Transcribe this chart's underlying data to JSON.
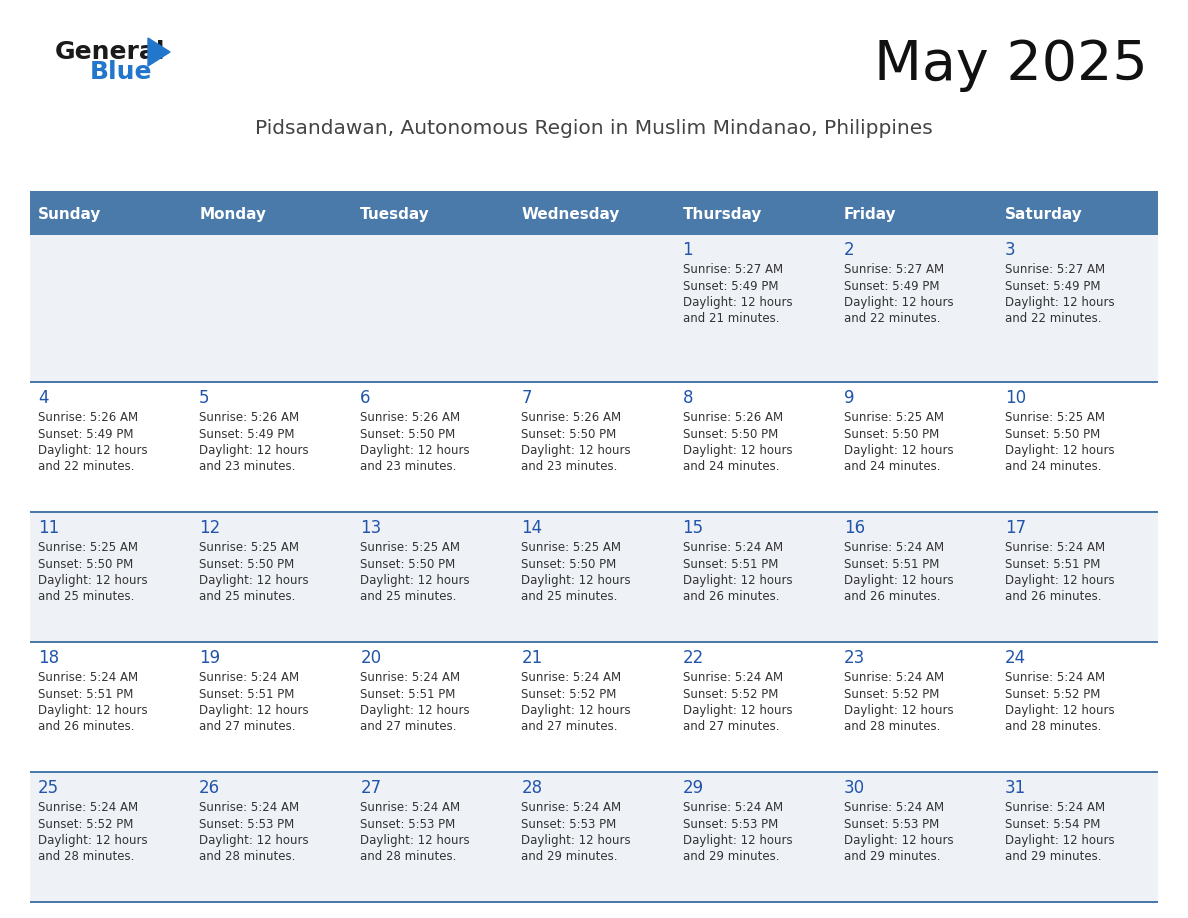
{
  "title": "May 2025",
  "subtitle": "Pidsandawan, Autonomous Region in Muslim Mindanao, Philippines",
  "days_of_week": [
    "Sunday",
    "Monday",
    "Tuesday",
    "Wednesday",
    "Thursday",
    "Friday",
    "Saturday"
  ],
  "header_bg": "#4a7aaa",
  "header_text": "#ffffff",
  "row_bg_odd": "#eef2f7",
  "row_bg_even": "#ffffff",
  "day_number_color": "#2255aa",
  "cell_text_color": "#333333",
  "border_color": "#4a7aaa",
  "title_color": "#111111",
  "subtitle_color": "#444444",
  "logo_general_color": "#1a1a1a",
  "logo_blue_color": "#2277cc",
  "calendar_data": [
    [
      null,
      null,
      null,
      null,
      {
        "day": 1,
        "sunrise": "5:27 AM",
        "sunset": "5:49 PM",
        "daylight": "12 hours and 21 minutes."
      },
      {
        "day": 2,
        "sunrise": "5:27 AM",
        "sunset": "5:49 PM",
        "daylight": "12 hours and 22 minutes."
      },
      {
        "day": 3,
        "sunrise": "5:27 AM",
        "sunset": "5:49 PM",
        "daylight": "12 hours and 22 minutes."
      }
    ],
    [
      {
        "day": 4,
        "sunrise": "5:26 AM",
        "sunset": "5:49 PM",
        "daylight": "12 hours and 22 minutes."
      },
      {
        "day": 5,
        "sunrise": "5:26 AM",
        "sunset": "5:49 PM",
        "daylight": "12 hours and 23 minutes."
      },
      {
        "day": 6,
        "sunrise": "5:26 AM",
        "sunset": "5:50 PM",
        "daylight": "12 hours and 23 minutes."
      },
      {
        "day": 7,
        "sunrise": "5:26 AM",
        "sunset": "5:50 PM",
        "daylight": "12 hours and 23 minutes."
      },
      {
        "day": 8,
        "sunrise": "5:26 AM",
        "sunset": "5:50 PM",
        "daylight": "12 hours and 24 minutes."
      },
      {
        "day": 9,
        "sunrise": "5:25 AM",
        "sunset": "5:50 PM",
        "daylight": "12 hours and 24 minutes."
      },
      {
        "day": 10,
        "sunrise": "5:25 AM",
        "sunset": "5:50 PM",
        "daylight": "12 hours and 24 minutes."
      }
    ],
    [
      {
        "day": 11,
        "sunrise": "5:25 AM",
        "sunset": "5:50 PM",
        "daylight": "12 hours and 25 minutes."
      },
      {
        "day": 12,
        "sunrise": "5:25 AM",
        "sunset": "5:50 PM",
        "daylight": "12 hours and 25 minutes."
      },
      {
        "day": 13,
        "sunrise": "5:25 AM",
        "sunset": "5:50 PM",
        "daylight": "12 hours and 25 minutes."
      },
      {
        "day": 14,
        "sunrise": "5:25 AM",
        "sunset": "5:50 PM",
        "daylight": "12 hours and 25 minutes."
      },
      {
        "day": 15,
        "sunrise": "5:24 AM",
        "sunset": "5:51 PM",
        "daylight": "12 hours and 26 minutes."
      },
      {
        "day": 16,
        "sunrise": "5:24 AM",
        "sunset": "5:51 PM",
        "daylight": "12 hours and 26 minutes."
      },
      {
        "day": 17,
        "sunrise": "5:24 AM",
        "sunset": "5:51 PM",
        "daylight": "12 hours and 26 minutes."
      }
    ],
    [
      {
        "day": 18,
        "sunrise": "5:24 AM",
        "sunset": "5:51 PM",
        "daylight": "12 hours and 26 minutes."
      },
      {
        "day": 19,
        "sunrise": "5:24 AM",
        "sunset": "5:51 PM",
        "daylight": "12 hours and 27 minutes."
      },
      {
        "day": 20,
        "sunrise": "5:24 AM",
        "sunset": "5:51 PM",
        "daylight": "12 hours and 27 minutes."
      },
      {
        "day": 21,
        "sunrise": "5:24 AM",
        "sunset": "5:52 PM",
        "daylight": "12 hours and 27 minutes."
      },
      {
        "day": 22,
        "sunrise": "5:24 AM",
        "sunset": "5:52 PM",
        "daylight": "12 hours and 27 minutes."
      },
      {
        "day": 23,
        "sunrise": "5:24 AM",
        "sunset": "5:52 PM",
        "daylight": "12 hours and 28 minutes."
      },
      {
        "day": 24,
        "sunrise": "5:24 AM",
        "sunset": "5:52 PM",
        "daylight": "12 hours and 28 minutes."
      }
    ],
    [
      {
        "day": 25,
        "sunrise": "5:24 AM",
        "sunset": "5:52 PM",
        "daylight": "12 hours and 28 minutes."
      },
      {
        "day": 26,
        "sunrise": "5:24 AM",
        "sunset": "5:53 PM",
        "daylight": "12 hours and 28 minutes."
      },
      {
        "day": 27,
        "sunrise": "5:24 AM",
        "sunset": "5:53 PM",
        "daylight": "12 hours and 28 minutes."
      },
      {
        "day": 28,
        "sunrise": "5:24 AM",
        "sunset": "5:53 PM",
        "daylight": "12 hours and 29 minutes."
      },
      {
        "day": 29,
        "sunrise": "5:24 AM",
        "sunset": "5:53 PM",
        "daylight": "12 hours and 29 minutes."
      },
      {
        "day": 30,
        "sunrise": "5:24 AM",
        "sunset": "5:53 PM",
        "daylight": "12 hours and 29 minutes."
      },
      {
        "day": 31,
        "sunrise": "5:24 AM",
        "sunset": "5:54 PM",
        "daylight": "12 hours and 29 minutes."
      }
    ]
  ]
}
